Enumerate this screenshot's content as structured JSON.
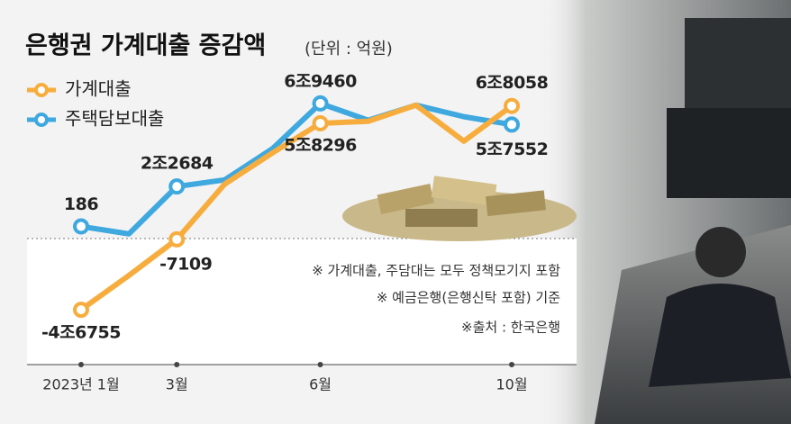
{
  "chart_data": {
    "type": "line",
    "title": "은행권 가계대출 증감액",
    "subtitle": "(단위 : 억원)",
    "categories": [
      "2023년 1월",
      null,
      "3월",
      null,
      null,
      "6월",
      null,
      null,
      null,
      "10월"
    ],
    "series": [
      {
        "name": "가계대출",
        "color": "#f7ad3d",
        "values": [
          -46755,
          -27400,
          -7109,
          24000,
          41600,
          58296,
          59400,
          68500,
          48200,
          68058
        ],
        "value_labels": [
          "-4조6755",
          null,
          "-7109",
          null,
          null,
          "5조8296",
          null,
          null,
          null,
          "6조8058"
        ]
      },
      {
        "name": "주택담보대출",
        "color": "#3ea8df",
        "values": [
          186,
          -4000,
          22684,
          26400,
          44000,
          69460,
          60000,
          68500,
          62000,
          57552
        ],
        "value_labels": [
          "186",
          null,
          "2조2684",
          null,
          null,
          "6조9460",
          null,
          null,
          null,
          "5조7552"
        ]
      }
    ],
    "ylim": [
      -50000,
      75000
    ],
    "notes": [
      "※ 가계대출, 주담대는 모두 정책모기지 포함",
      "※ 예금은행(은행신탁 포함) 기준",
      "※출처 : 한국은행"
    ]
  }
}
